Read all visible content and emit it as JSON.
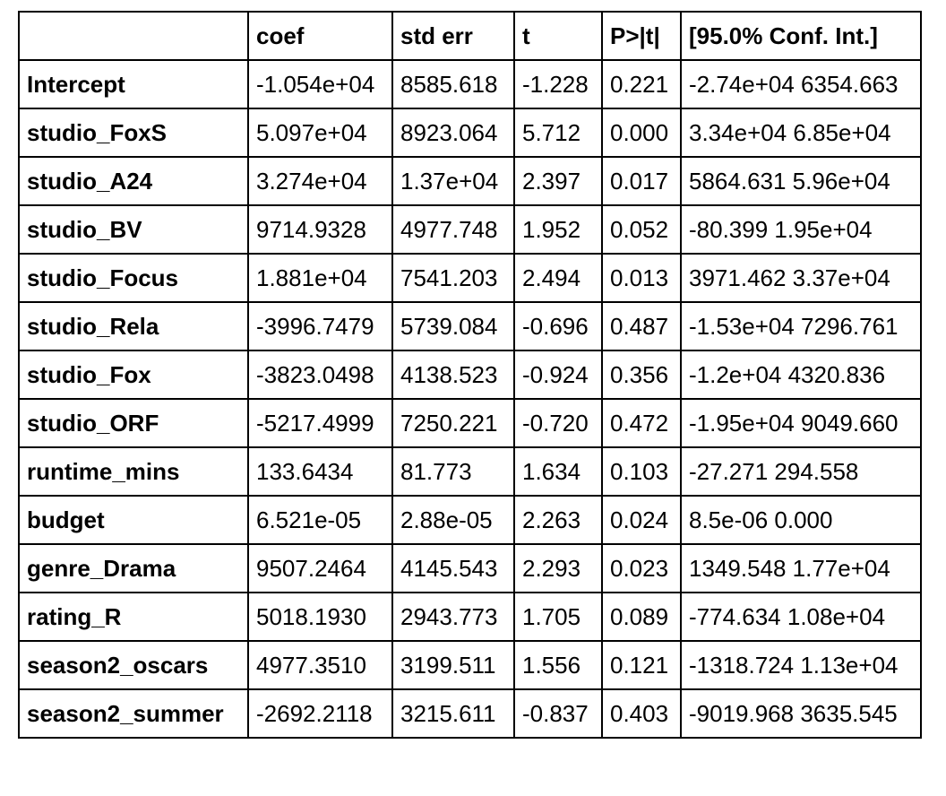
{
  "table": {
    "headers": [
      "",
      "coef",
      "std err",
      "t",
      "P>|t|",
      "[95.0% Conf. Int.]"
    ],
    "rows": [
      {
        "label": "Intercept",
        "coef": "-1.054e+04",
        "std_err": "8585.618",
        "t": "-1.228",
        "p": "0.221",
        "ci": "-2.74e+04 6354.663"
      },
      {
        "label": "studio_FoxS",
        "coef": "5.097e+04",
        "std_err": "8923.064",
        "t": "5.712",
        "p": "0.000",
        "ci": "3.34e+04 6.85e+04"
      },
      {
        "label": "studio_A24",
        "coef": "3.274e+04",
        "std_err": "1.37e+04",
        "t": "2.397",
        "p": "0.017",
        "ci": "5864.631 5.96e+04"
      },
      {
        "label": "studio_BV",
        "coef": "9714.9328",
        "std_err": "4977.748",
        "t": "1.952",
        "p": "0.052",
        "ci": "-80.399 1.95e+04"
      },
      {
        "label": "studio_Focus",
        "coef": "1.881e+04",
        "std_err": "7541.203",
        "t": "2.494",
        "p": "0.013",
        "ci": "3971.462 3.37e+04"
      },
      {
        "label": "studio_Rela",
        "coef": "-3996.7479",
        "std_err": "5739.084",
        "t": "-0.696",
        "p": "0.487",
        "ci": "-1.53e+04 7296.761"
      },
      {
        "label": "studio_Fox",
        "coef": "-3823.0498",
        "std_err": "4138.523",
        "t": "-0.924",
        "p": "0.356",
        "ci": "-1.2e+04 4320.836"
      },
      {
        "label": "studio_ORF",
        "coef": "-5217.4999",
        "std_err": "7250.221",
        "t": "-0.720",
        "p": "0.472",
        "ci": "-1.95e+04 9049.660"
      },
      {
        "label": "runtime_mins",
        "coef": "133.6434",
        "std_err": "81.773",
        "t": "1.634",
        "p": "0.103",
        "ci": "-27.271 294.558"
      },
      {
        "label": "budget",
        "coef": "6.521e-05",
        "std_err": "2.88e-05",
        "t": "2.263",
        "p": "0.024",
        "ci": "8.5e-06 0.000"
      },
      {
        "label": "genre_Drama",
        "coef": "9507.2464",
        "std_err": "4145.543",
        "t": "2.293",
        "p": "0.023",
        "ci": "1349.548 1.77e+04"
      },
      {
        "label": "rating_R",
        "coef": "5018.1930",
        "std_err": "2943.773",
        "t": "1.705",
        "p": "0.089",
        "ci": "-774.634 1.08e+04"
      },
      {
        "label": "season2_oscars",
        "coef": "4977.3510",
        "std_err": "3199.511",
        "t": "1.556",
        "p": "0.121",
        "ci": "-1318.724 1.13e+04"
      },
      {
        "label": "season2_summer",
        "coef": "-2692.2118",
        "std_err": "3215.611",
        "t": "-0.837",
        "p": "0.403",
        "ci": "-9019.968 3635.545"
      }
    ]
  }
}
